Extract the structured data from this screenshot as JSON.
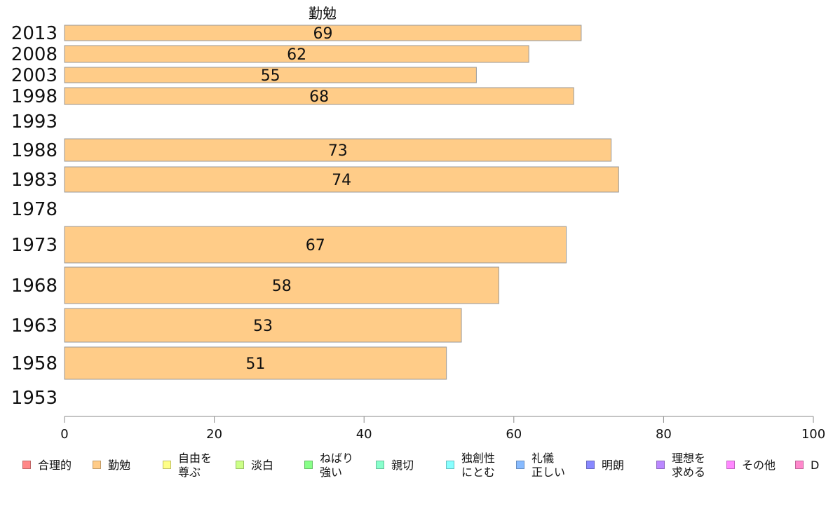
{
  "chart_data": {
    "type": "bar",
    "orientation": "horizontal",
    "title": "勤勉",
    "categories": [
      "2013",
      "2008",
      "2003",
      "1998",
      "1993",
      "1988",
      "1983",
      "1978",
      "1973",
      "1968",
      "1963",
      "1958",
      "1953"
    ],
    "series": [
      {
        "name": "勤勉",
        "color": "#ffcc88",
        "values": [
          69,
          62,
          55,
          68,
          null,
          73,
          74,
          null,
          67,
          58,
          53,
          51,
          null
        ]
      }
    ],
    "xlim": [
      0,
      100
    ],
    "xticks": [
      "0",
      "20",
      "40",
      "60",
      "80",
      "100"
    ],
    "grid": false,
    "legend_position": "bottom"
  },
  "legend": [
    {
      "label": "合理的",
      "color": "#ff8888"
    },
    {
      "label": "勤勉",
      "color": "#ffcc88"
    },
    {
      "label": "自由を\n尊ぶ",
      "color": "#ffff88"
    },
    {
      "label": "淡白",
      "color": "#ccff88"
    },
    {
      "label": "ねばり\n強い",
      "color": "#88ff88"
    },
    {
      "label": "親切",
      "color": "#88ffcc"
    },
    {
      "label": "独創性\nにとむ",
      "color": "#88ffff"
    },
    {
      "label": "礼儀\n正しい",
      "color": "#88bbff"
    },
    {
      "label": "明朗",
      "color": "#8888ff"
    },
    {
      "label": "理想を\n求める",
      "color": "#bb88ff"
    },
    {
      "label": "その他",
      "color": "#ff88ff"
    },
    {
      "label": "D",
      "color": "#ff88cc"
    }
  ]
}
